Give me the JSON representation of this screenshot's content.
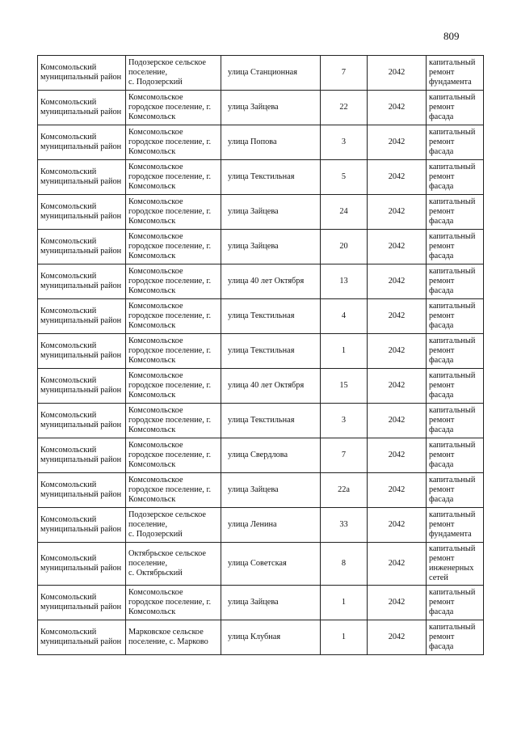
{
  "page_number": "809",
  "rows": [
    {
      "district": "Комсомольский муниципальный район",
      "settlement": "Подозерское сельское поселение,\nс. Подозерский",
      "street": "улица Станционная",
      "house": "7",
      "year": "2042",
      "work": "капитальный ремонт фундамента"
    },
    {
      "district": "Комсомольский муниципальный район",
      "settlement": "Комсомольское городское поселение, г. Комсомольск",
      "street": "улица  Зайцева",
      "house": "22",
      "year": "2042",
      "work": "капитальный ремонт фасада"
    },
    {
      "district": "Комсомольский муниципальный район",
      "settlement": "Комсомольское городское поселение, г. Комсомольск",
      "street": "улица Попова",
      "house": "3",
      "year": "2042",
      "work": "капитальный ремонт фасада"
    },
    {
      "district": "Комсомольский муниципальный район",
      "settlement": "Комсомольское городское поселение, г. Комсомольск",
      "street": "улица Текстильная",
      "house": "5",
      "year": "2042",
      "work": "капитальный ремонт фасада"
    },
    {
      "district": "Комсомольский муниципальный район",
      "settlement": "Комсомольское городское поселение, г. Комсомольск",
      "street": "улица  Зайцева",
      "house": "24",
      "year": "2042",
      "work": "капитальный ремонт фасада"
    },
    {
      "district": "Комсомольский муниципальный район",
      "settlement": "Комсомольское городское поселение, г. Комсомольск",
      "street": "улица  Зайцева",
      "house": "20",
      "year": "2042",
      "work": "капитальный ремонт фасада"
    },
    {
      "district": "Комсомольский муниципальный район",
      "settlement": "Комсомольское городское поселение, г. Комсомольск",
      "street": "улица  40 лет Октября",
      "house": "13",
      "year": "2042",
      "work": "капитальный ремонт фасада"
    },
    {
      "district": "Комсомольский муниципальный район",
      "settlement": "Комсомольское городское поселение, г. Комсомольск",
      "street": "улица Текстильная",
      "house": "4",
      "year": "2042",
      "work": "капитальный ремонт фасада"
    },
    {
      "district": "Комсомольский муниципальный район",
      "settlement": "Комсомольское городское поселение, г. Комсомольск",
      "street": "улица Текстильная",
      "house": "1",
      "year": "2042",
      "work": "капитальный ремонт фасада"
    },
    {
      "district": "Комсомольский муниципальный район",
      "settlement": "Комсомольское городское поселение, г. Комсомольск",
      "street": "улица  40 лет Октября",
      "house": "15",
      "year": "2042",
      "work": "капитальный ремонт фасада"
    },
    {
      "district": "Комсомольский муниципальный район",
      "settlement": "Комсомольское городское поселение, г. Комсомольск",
      "street": "улица Текстильная",
      "house": "3",
      "year": "2042",
      "work": "капитальный ремонт фасада"
    },
    {
      "district": "Комсомольский муниципальный район",
      "settlement": "Комсомольское городское поселение, г. Комсомольск",
      "street": "улица Свердлова",
      "house": "7",
      "year": "2042",
      "work": "капитальный ремонт фасада"
    },
    {
      "district": "Комсомольский муниципальный район",
      "settlement": "Комсомольское городское поселение, г. Комсомольск",
      "street": "улица  Зайцева",
      "house": "22а",
      "year": "2042",
      "work": "капитальный ремонт фасада"
    },
    {
      "district": "Комсомольский муниципальный район",
      "settlement": "Подозерское сельское поселение,\nс. Подозерский",
      "street": "улица Ленина",
      "house": "33",
      "year": "2042",
      "work": "капитальный ремонт фундамента"
    },
    {
      "district": "Комсомольский муниципальный район",
      "settlement": "Октябрьское сельское поселение,\nс. Октябрьский",
      "street": "улица  Советская",
      "house": "8",
      "year": "2042",
      "work": "капитальный ремонт инженерных сетей"
    },
    {
      "district": "Комсомольский муниципальный район",
      "settlement": "Комсомольское городское поселение, г. Комсомольск",
      "street": "улица  Зайцева",
      "house": "1",
      "year": "2042",
      "work": "капитальный ремонт фасада"
    },
    {
      "district": "Комсомольский муниципальный район",
      "settlement": "Марковское сельское поселение, с. Марково",
      "street": "улица Клубная",
      "house": "1",
      "year": "2042",
      "work": "капитальный ремонт фасада"
    }
  ]
}
